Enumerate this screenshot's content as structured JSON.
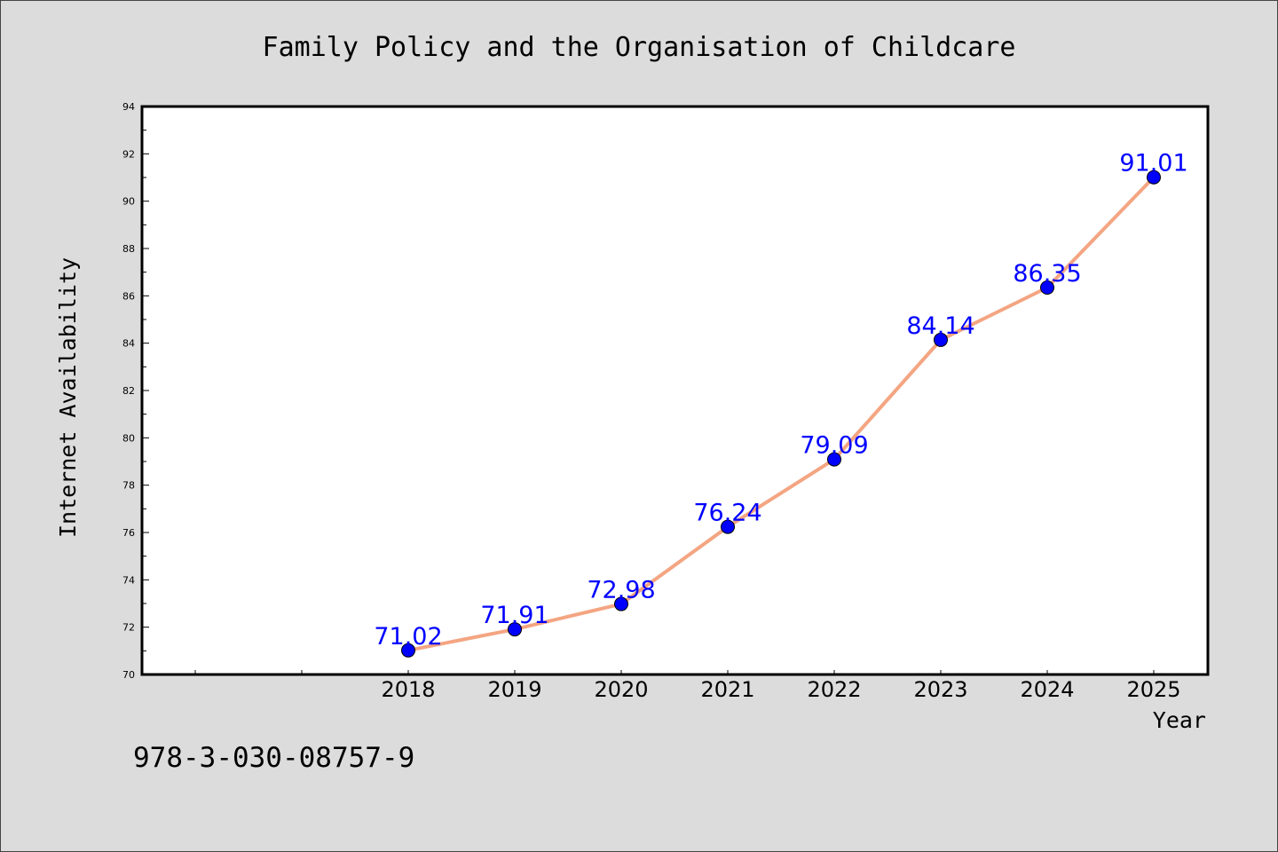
{
  "chart_data": {
    "type": "line",
    "title": "Family Policy and the Organisation of Childcare",
    "xlabel": "Year",
    "ylabel": "Internet Availability",
    "x": [
      "2018",
      "2019",
      "2020",
      "2021",
      "2022",
      "2023",
      "2024",
      "2025"
    ],
    "series": [
      {
        "values": [
          71.02,
          71.91,
          72.98,
          76.24,
          79.09,
          84.14,
          86.35,
          91.01
        ],
        "labels": [
          "71.02",
          "71.91",
          "72.98",
          "76.24",
          "79.09",
          "84.14",
          "86.35",
          "91.01"
        ]
      }
    ],
    "ylim": [
      70,
      94
    ],
    "yticks": [
      "70",
      "72",
      "74",
      "76",
      "78",
      "80",
      "82",
      "84",
      "86",
      "88",
      "90",
      "92",
      "94"
    ],
    "grid": false,
    "colors": {
      "line": "#f4a582",
      "marker": "#0000ff",
      "data_label": "#0000ff",
      "background": "#dcdcdc",
      "plot_background": "#ffffff"
    }
  },
  "footnote": "978-3-030-08757-9"
}
